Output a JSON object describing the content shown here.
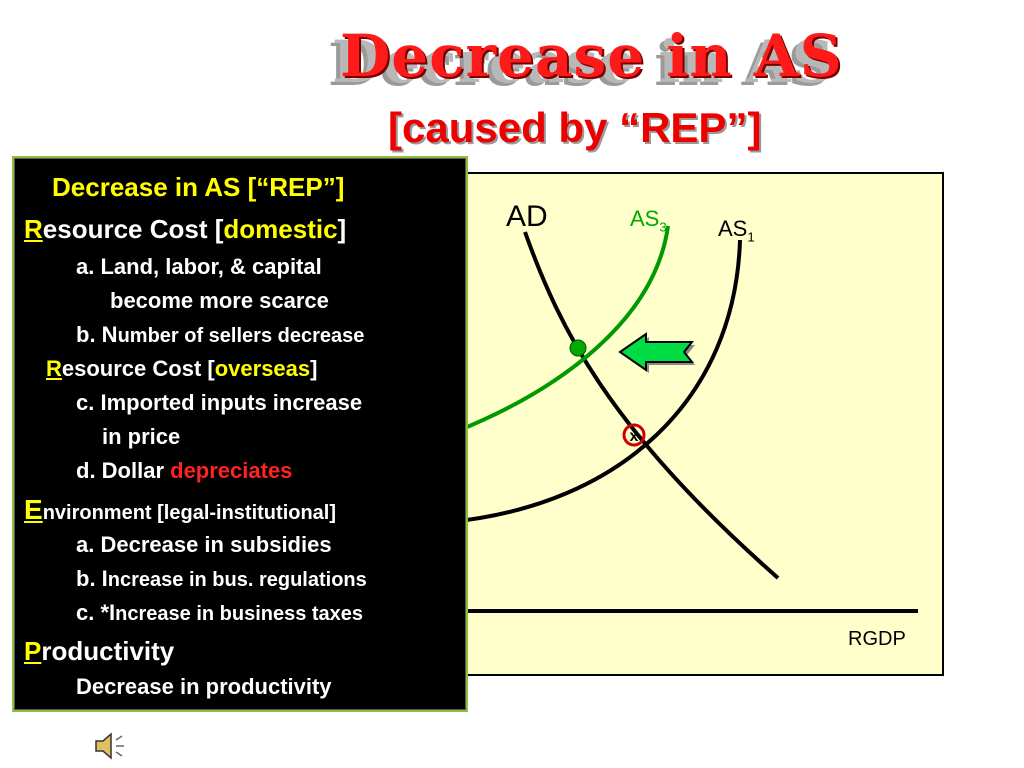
{
  "slide": {
    "title": "Decrease in AS",
    "subtitle": "[caused by “REP”]"
  },
  "graph": {
    "labels": {
      "ad": "AD",
      "as3": "AS",
      "as3_sub": "3",
      "as1": "AS",
      "as1_sub": "1",
      "x_axis": "RGDP"
    },
    "colors": {
      "background": "#ffffcc",
      "as3": "#009900",
      "ad": "#000000",
      "as1": "#000000",
      "arrow": "#00dd44",
      "new_equilibrium": "#00aa00",
      "old_equilibrium": "#cc0000"
    },
    "old_equilibrium_marker": "x"
  },
  "info_box": {
    "heading": "Decrease in AS [“REP”]",
    "r1_letter": "R",
    "r1_rest": "esource Cost [",
    "r1_term": "domestic",
    "r1_end": "]",
    "a1": "a. Land, labor, & capital",
    "a2": "become more scarce",
    "b_prefix": "b. N",
    "b_rest": "umber of sellers decrease",
    "r2_letter": "R",
    "r2_rest": "esource Cost [",
    "r2_term": "overseas",
    "r2_end": "]",
    "c1": "c. Imported inputs increase",
    "c2": "in price",
    "d_prefix": "d. Dollar ",
    "d_term": "depreciates",
    "e_letter": "E",
    "e_rest": "nvironment [legal-institutional]",
    "ea": "a. Decrease in subsidies",
    "eb_prefix": "b. I",
    "eb_rest": "ncrease in bus. regulations",
    "ec_prefix": "c. *I",
    "ec_rest": "ncrease in business taxes",
    "p_letter": "P",
    "p_rest": "roductivity",
    "p_item": "Decrease in productivity"
  },
  "audio": {
    "icon": "speaker-icon"
  }
}
